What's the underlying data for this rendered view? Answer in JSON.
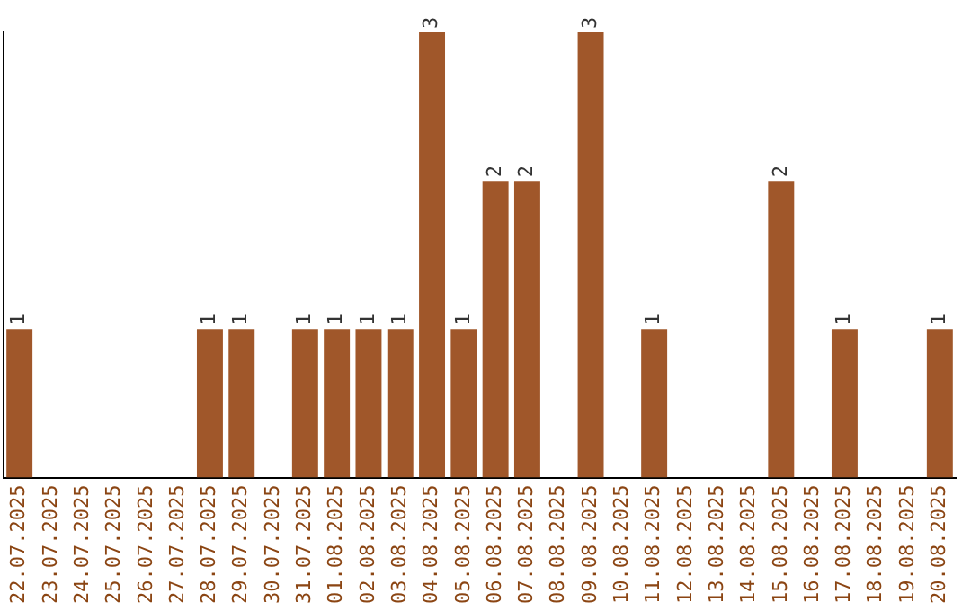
{
  "chart_data": {
    "type": "bar",
    "categories": [
      "22.07.2025",
      "23.07.2025",
      "24.07.2025",
      "25.07.2025",
      "26.07.2025",
      "27.07.2025",
      "28.07.2025",
      "29.07.2025",
      "30.07.2025",
      "31.07.2025",
      "01.08.2025",
      "02.08.2025",
      "03.08.2025",
      "04.08.2025",
      "05.08.2025",
      "06.08.2025",
      "07.08.2025",
      "08.08.2025",
      "09.08.2025",
      "10.08.2025",
      "11.08.2025",
      "12.08.2025",
      "13.08.2025",
      "14.08.2025",
      "15.08.2025",
      "16.08.2025",
      "17.08.2025",
      "18.08.2025",
      "19.08.2025",
      "20.08.2025"
    ],
    "values": [
      1,
      0,
      0,
      0,
      0,
      0,
      1,
      1,
      0,
      1,
      1,
      1,
      1,
      3,
      1,
      2,
      2,
      0,
      3,
      0,
      1,
      0,
      0,
      0,
      2,
      0,
      1,
      0,
      0,
      1
    ],
    "value_labels": [
      "1",
      null,
      null,
      null,
      null,
      null,
      "1",
      "1",
      null,
      "1",
      "1",
      "1",
      "1",
      "3",
      "1",
      "2",
      "2",
      null,
      "3",
      null,
      "1",
      null,
      null,
      null,
      "2",
      null,
      "1",
      null,
      null,
      "1"
    ],
    "color": "#a0572a",
    "ylim": [
      0,
      3
    ],
    "tick_labels": "x",
    "grid": false,
    "legend": false
  }
}
